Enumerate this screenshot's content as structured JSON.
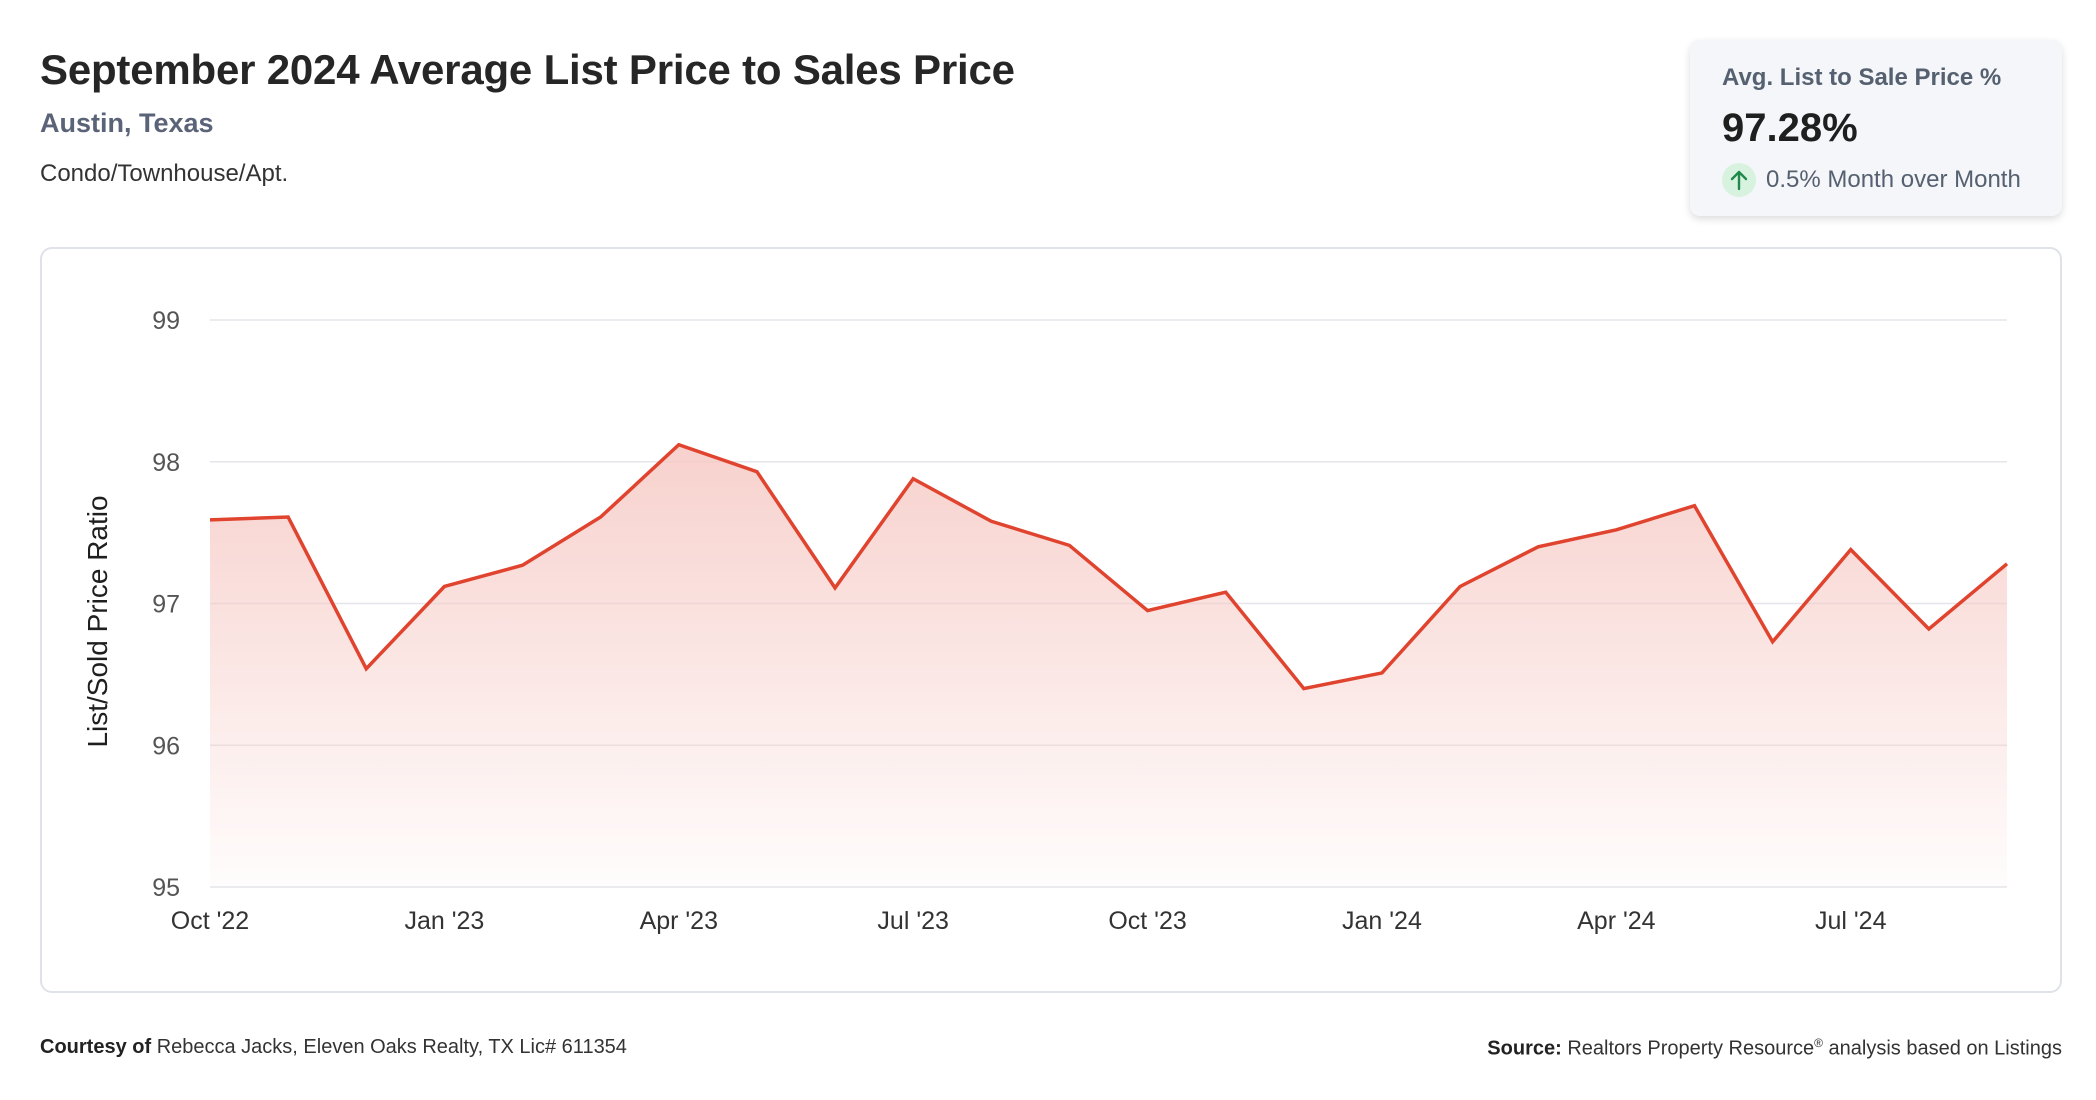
{
  "header": {
    "title": "September 2024 Average List Price to Sales Price",
    "location": "Austin, Texas",
    "segment": "Condo/Townhouse/Apt."
  },
  "kpi": {
    "label": "Avg. List to Sale Price %",
    "value": "97.28%",
    "change": "0.5% Month over Month",
    "change_icon": "arrow-up-icon",
    "up_color": "#1f8a4c"
  },
  "colors": {
    "line": "#e0442f",
    "fill_top": "#f6c9c4",
    "grid": "#e4e6ea"
  },
  "chart_data": {
    "type": "area",
    "title": "",
    "xlabel": "",
    "ylabel": "List/Sold Price Ratio",
    "ylim": [
      95,
      99
    ],
    "yticks": [
      95,
      96,
      97,
      98,
      99
    ],
    "grid": true,
    "x": [
      "2022-10",
      "2022-11",
      "2022-12",
      "2023-01",
      "2023-02",
      "2023-03",
      "2023-04",
      "2023-05",
      "2023-06",
      "2023-07",
      "2023-08",
      "2023-09",
      "2023-10",
      "2023-11",
      "2023-12",
      "2024-01",
      "2024-02",
      "2024-03",
      "2024-04",
      "2024-05",
      "2024-06",
      "2024-07",
      "2024-08",
      "2024-09"
    ],
    "xtick_labels": [
      {
        "x": "2022-10",
        "label": "Oct '22"
      },
      {
        "x": "2023-01",
        "label": "Jan '23"
      },
      {
        "x": "2023-04",
        "label": "Apr '23"
      },
      {
        "x": "2023-07",
        "label": "Jul '23"
      },
      {
        "x": "2023-10",
        "label": "Oct '23"
      },
      {
        "x": "2024-01",
        "label": "Jan '24"
      },
      {
        "x": "2024-04",
        "label": "Apr '24"
      },
      {
        "x": "2024-07",
        "label": "Jul '24"
      }
    ],
    "series": [
      {
        "values": [
          97.59,
          97.61,
          96.54,
          97.12,
          97.27,
          97.61,
          98.12,
          97.93,
          97.11,
          97.88,
          97.58,
          97.41,
          96.95,
          97.08,
          96.4,
          96.51,
          97.12,
          97.4,
          97.52,
          97.69,
          96.73,
          97.38,
          96.82,
          97.28
        ]
      }
    ]
  },
  "footer": {
    "courtesy_label": "Courtesy of",
    "courtesy_text": "Rebecca Jacks, Eleven Oaks Realty, TX Lic# 611354",
    "source_label": "Source:",
    "source_text_1": "Realtors Property Resource",
    "source_sup": "®",
    "source_text_2": " analysis based on Listings"
  }
}
